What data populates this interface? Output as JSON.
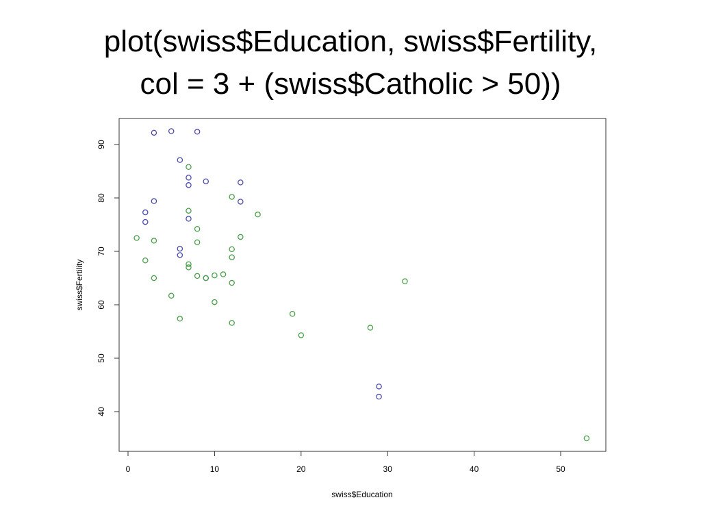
{
  "slide": {
    "title_line1": "plot(swiss$Education, swiss$Fertility,",
    "title_line2": "col = 3 + (swiss$Catholic > 50))"
  },
  "chart_data": {
    "type": "scatter",
    "title": "",
    "xlabel": "swiss$Education",
    "ylabel": "swiss$Fertility",
    "xlim": [
      0,
      55
    ],
    "ylim": [
      35,
      94
    ],
    "xticks": [
      0,
      10,
      20,
      30,
      40,
      50
    ],
    "yticks": [
      40,
      50,
      60,
      70,
      80,
      90
    ],
    "grid": false,
    "marker": "open-circle",
    "series": [
      {
        "color": "#4b4bb0",
        "points": [
          {
            "x": 3,
            "y": 92.2
          },
          {
            "x": 5,
            "y": 92.5
          },
          {
            "x": 8,
            "y": 92.4
          },
          {
            "x": 6,
            "y": 87.1
          },
          {
            "x": 7,
            "y": 83.8
          },
          {
            "x": 7,
            "y": 82.4
          },
          {
            "x": 9,
            "y": 83.1
          },
          {
            "x": 13,
            "y": 82.9
          },
          {
            "x": 3,
            "y": 79.4
          },
          {
            "x": 13,
            "y": 79.3
          },
          {
            "x": 2,
            "y": 77.3
          },
          {
            "x": 2,
            "y": 75.5
          },
          {
            "x": 7,
            "y": 76.1
          },
          {
            "x": 6,
            "y": 70.5
          },
          {
            "x": 6,
            "y": 69.3
          },
          {
            "x": 9,
            "y": 65.0
          },
          {
            "x": 29,
            "y": 44.7
          },
          {
            "x": 29,
            "y": 42.8
          }
        ]
      },
      {
        "color": "#4aa04a",
        "points": [
          {
            "x": 7,
            "y": 85.8
          },
          {
            "x": 12,
            "y": 80.2
          },
          {
            "x": 15,
            "y": 76.9
          },
          {
            "x": 7,
            "y": 77.6
          },
          {
            "x": 8,
            "y": 74.2
          },
          {
            "x": 1,
            "y": 72.5
          },
          {
            "x": 3,
            "y": 72.0
          },
          {
            "x": 8,
            "y": 71.7
          },
          {
            "x": 13,
            "y": 72.7
          },
          {
            "x": 12,
            "y": 70.4
          },
          {
            "x": 12,
            "y": 68.9
          },
          {
            "x": 2,
            "y": 68.3
          },
          {
            "x": 7,
            "y": 67.6
          },
          {
            "x": 7,
            "y": 67.0
          },
          {
            "x": 8,
            "y": 65.4
          },
          {
            "x": 10,
            "y": 65.5
          },
          {
            "x": 11,
            "y": 65.7
          },
          {
            "x": 9,
            "y": 65.0
          },
          {
            "x": 3,
            "y": 65.0
          },
          {
            "x": 12,
            "y": 64.1
          },
          {
            "x": 32,
            "y": 64.4
          },
          {
            "x": 5,
            "y": 61.7
          },
          {
            "x": 10,
            "y": 60.5
          },
          {
            "x": 19,
            "y": 58.3
          },
          {
            "x": 6,
            "y": 57.4
          },
          {
            "x": 12,
            "y": 56.6
          },
          {
            "x": 28,
            "y": 55.7
          },
          {
            "x": 20,
            "y": 54.3
          },
          {
            "x": 53,
            "y": 35.0
          }
        ]
      }
    ]
  }
}
